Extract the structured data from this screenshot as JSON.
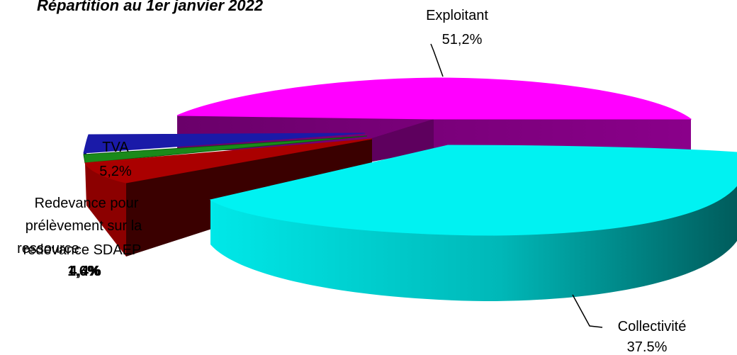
{
  "chart_data": {
    "type": "pie",
    "title": "Répartition au 1er janvier 2022",
    "exploded": true,
    "three_d": true,
    "slices": [
      {
        "label": "Exploitant",
        "value": 51.2,
        "value_label": "51,2%",
        "color": "#ff00ff",
        "side_color": "#800080"
      },
      {
        "label": "Collectivité",
        "value": 37.5,
        "value_label": "37,5%",
        "color": "#00f2f2",
        "side_color": "#007070"
      },
      {
        "label": "Redevance pour prélèvement sur la ressource",
        "label_lines": [
          "Redevance pour",
          "prélèvement sur la",
          "ressource"
        ],
        "value": 1.6,
        "value_label": "1,6%",
        "color": "#ff2020",
        "side_color": "#990000"
      },
      {
        "label": "redevance SDAEP",
        "value": 4.4,
        "value_label": "4,4%",
        "color": "#a00000",
        "side_color": "#5a0000"
      },
      {
        "label": "TVA",
        "value": 5.2,
        "value_label": "5,2%",
        "color": "#1a1aa8",
        "side_color": "#0a0a80"
      }
    ]
  }
}
